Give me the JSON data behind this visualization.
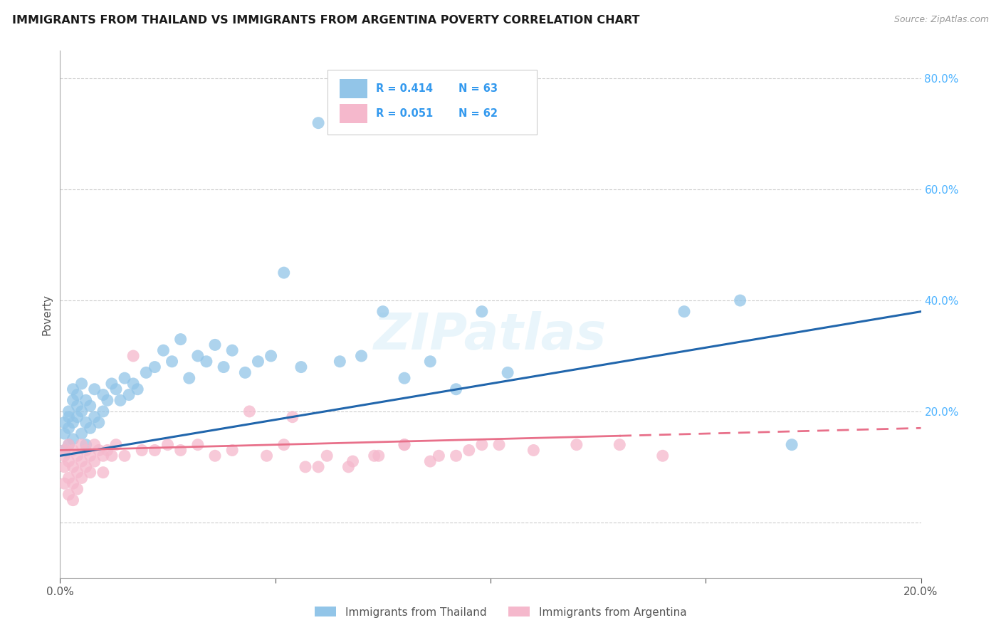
{
  "title": "IMMIGRANTS FROM THAILAND VS IMMIGRANTS FROM ARGENTINA POVERTY CORRELATION CHART",
  "source": "Source: ZipAtlas.com",
  "ylabel": "Poverty",
  "xlim": [
    0.0,
    0.2
  ],
  "ylim": [
    -0.1,
    0.85
  ],
  "thailand_R": 0.414,
  "thailand_N": 63,
  "argentina_R": 0.051,
  "argentina_N": 62,
  "thailand_color": "#92c5e8",
  "argentina_color": "#f5b8cc",
  "thailand_line_color": "#2166ac",
  "argentina_line_color": "#e8708a",
  "legend_label_thailand": "Immigrants from Thailand",
  "legend_label_argentina": "Immigrants from Argentina",
  "thailand_x": [
    0.001,
    0.001,
    0.001,
    0.002,
    0.002,
    0.002,
    0.002,
    0.003,
    0.003,
    0.003,
    0.003,
    0.004,
    0.004,
    0.004,
    0.005,
    0.005,
    0.005,
    0.006,
    0.006,
    0.006,
    0.007,
    0.007,
    0.008,
    0.008,
    0.009,
    0.01,
    0.01,
    0.011,
    0.012,
    0.013,
    0.014,
    0.015,
    0.016,
    0.017,
    0.018,
    0.02,
    0.022,
    0.024,
    0.026,
    0.028,
    0.03,
    0.032,
    0.034,
    0.036,
    0.038,
    0.04,
    0.043,
    0.046,
    0.049,
    0.052,
    0.056,
    0.06,
    0.065,
    0.07,
    0.075,
    0.08,
    0.086,
    0.092,
    0.098,
    0.104,
    0.145,
    0.158,
    0.17
  ],
  "thailand_y": [
    0.13,
    0.16,
    0.18,
    0.14,
    0.17,
    0.19,
    0.2,
    0.15,
    0.18,
    0.22,
    0.24,
    0.19,
    0.21,
    0.23,
    0.16,
    0.2,
    0.25,
    0.14,
    0.18,
    0.22,
    0.17,
    0.21,
    0.19,
    0.24,
    0.18,
    0.2,
    0.23,
    0.22,
    0.25,
    0.24,
    0.22,
    0.26,
    0.23,
    0.25,
    0.24,
    0.27,
    0.28,
    0.31,
    0.29,
    0.33,
    0.26,
    0.3,
    0.29,
    0.32,
    0.28,
    0.31,
    0.27,
    0.29,
    0.3,
    0.45,
    0.28,
    0.72,
    0.29,
    0.3,
    0.38,
    0.26,
    0.29,
    0.24,
    0.38,
    0.27,
    0.38,
    0.4,
    0.14
  ],
  "argentina_x": [
    0.001,
    0.001,
    0.001,
    0.001,
    0.002,
    0.002,
    0.002,
    0.002,
    0.003,
    0.003,
    0.003,
    0.003,
    0.004,
    0.004,
    0.004,
    0.005,
    0.005,
    0.005,
    0.006,
    0.006,
    0.007,
    0.007,
    0.008,
    0.008,
    0.009,
    0.01,
    0.01,
    0.011,
    0.012,
    0.013,
    0.015,
    0.017,
    0.019,
    0.022,
    0.025,
    0.028,
    0.032,
    0.036,
    0.04,
    0.044,
    0.048,
    0.052,
    0.057,
    0.062,
    0.068,
    0.074,
    0.08,
    0.086,
    0.092,
    0.098,
    0.054,
    0.06,
    0.067,
    0.073,
    0.08,
    0.088,
    0.095,
    0.102,
    0.11,
    0.12,
    0.13,
    0.14
  ],
  "argentina_y": [
    0.13,
    0.12,
    0.1,
    0.07,
    0.14,
    0.11,
    0.08,
    0.05,
    0.13,
    0.1,
    0.07,
    0.04,
    0.12,
    0.09,
    0.06,
    0.14,
    0.11,
    0.08,
    0.13,
    0.1,
    0.12,
    0.09,
    0.14,
    0.11,
    0.13,
    0.12,
    0.09,
    0.13,
    0.12,
    0.14,
    0.12,
    0.3,
    0.13,
    0.13,
    0.14,
    0.13,
    0.14,
    0.12,
    0.13,
    0.2,
    0.12,
    0.14,
    0.1,
    0.12,
    0.11,
    0.12,
    0.14,
    0.11,
    0.12,
    0.14,
    0.19,
    0.1,
    0.1,
    0.12,
    0.14,
    0.12,
    0.13,
    0.14,
    0.13,
    0.14,
    0.14,
    0.12
  ]
}
